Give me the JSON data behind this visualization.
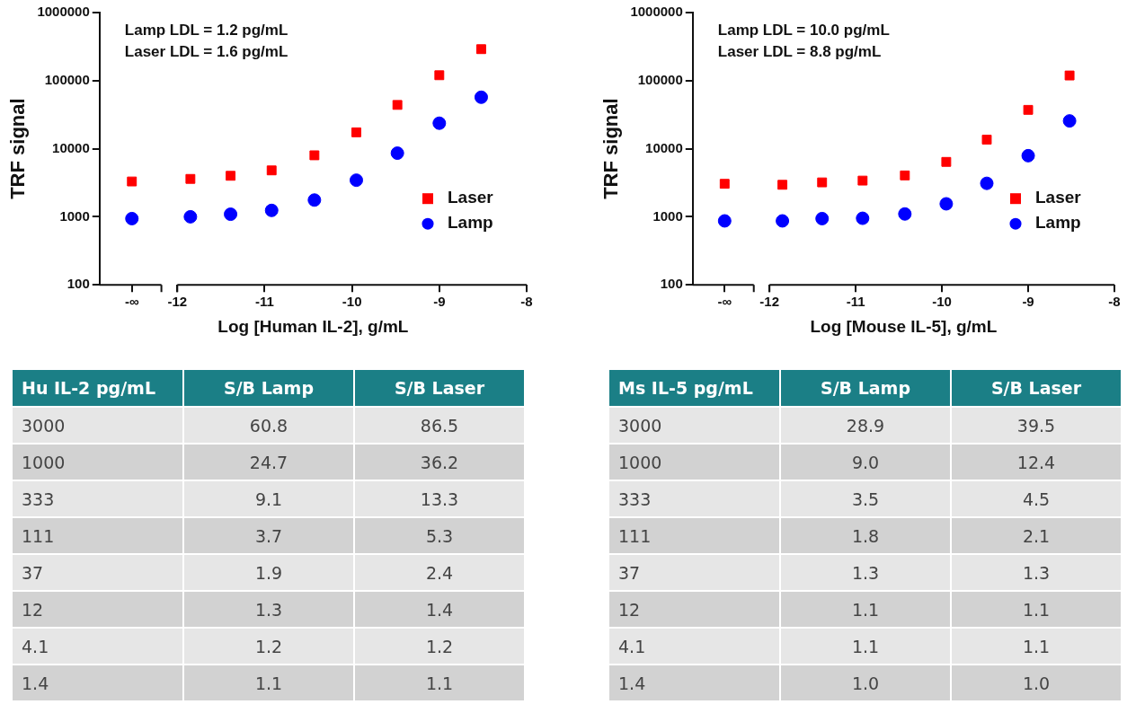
{
  "chart_data": [
    {
      "type": "scatter",
      "xlabel": "Log [Human IL-2], g/mL",
      "ylabel": "TRF signal",
      "log": "y",
      "grid": false,
      "legend": "bottom right",
      "annotations": [
        "Lamp LDL = 1.2 pg/mL",
        "Laser LDL = 1.6 pg/mL"
      ],
      "x": [
        -12.52,
        -11.85,
        -11.39,
        -10.92,
        -10.43,
        -9.95,
        -9.48,
        -9,
        -8.52
      ],
      "xlim": [
        -12.89,
        -8
      ],
      "xticks": [
        {
          "value": -12.52,
          "label": "-∞"
        },
        -12,
        -11,
        -10,
        -9,
        -8
      ],
      "ylim": [
        100,
        1000000
      ],
      "yticks": [
        100,
        1000,
        10000,
        100000,
        1000000
      ],
      "series": [
        {
          "name": "Laser",
          "color": "#ff0000",
          "marker": "square",
          "values": [
            3300,
            3600,
            4000,
            4800,
            8000,
            17400,
            44000,
            120000,
            290000
          ]
        },
        {
          "name": "Lamp",
          "color": "#0000ff",
          "marker": "circle",
          "values": [
            940,
            1000,
            1090,
            1240,
            1760,
            3450,
            8600,
            23700,
            57000
          ]
        }
      ]
    },
    {
      "type": "scatter",
      "xlabel": "Log [Mouse IL-5], g/mL",
      "ylabel": "TRF signal",
      "log": "y",
      "grid": false,
      "legend": "bottom right",
      "annotations": [
        "Lamp LDL = 10.0 pg/mL",
        "Laser LDL = 8.8 pg/mL"
      ],
      "x": [
        -12.52,
        -11.85,
        -11.39,
        -10.92,
        -10.43,
        -9.95,
        -9.48,
        -9,
        -8.52
      ],
      "xlim": [
        -12.89,
        -8
      ],
      "xticks": [
        {
          "value": -12.52,
          "label": "-∞"
        },
        -12,
        -11,
        -10,
        -9,
        -8
      ],
      "ylim": [
        100,
        1000000
      ],
      "yticks": [
        100,
        1000,
        10000,
        100000,
        1000000
      ],
      "series": [
        {
          "name": "Laser",
          "color": "#ff0000",
          "marker": "square",
          "values": [
            3050,
            2950,
            3200,
            3400,
            4050,
            6400,
            13600,
            37200,
            119000
          ]
        },
        {
          "name": "Lamp",
          "color": "#0000ff",
          "marker": "circle",
          "values": [
            870,
            870,
            940,
            950,
            1100,
            1550,
            3100,
            7900,
            25600
          ]
        }
      ]
    },
    {
      "type": "heatmap",
      "data_labels": true,
      "ylabel": "Hu IL-2 pg/mL",
      "categories": [
        "S/B Lamp",
        "S/B Laser"
      ],
      "y_categories": [
        "3000",
        "1000",
        "333",
        "111",
        "37",
        "12",
        "4.1",
        "1.4"
      ],
      "cells": [
        [
          60.8,
          86.5
        ],
        [
          24.7,
          36.2
        ],
        [
          9.1,
          13.3
        ],
        [
          3.7,
          5.3
        ],
        [
          1.9,
          2.4
        ],
        [
          1.3,
          1.4
        ],
        [
          1.2,
          1.2
        ],
        [
          1.1,
          1.1
        ]
      ]
    },
    {
      "type": "heatmap",
      "data_labels": true,
      "ylabel": "Ms IL-5 pg/mL",
      "categories": [
        "S/B Lamp",
        "S/B Laser"
      ],
      "y_categories": [
        "3000",
        "1000",
        "333",
        "111",
        "37",
        "12",
        "4.1",
        "1.4"
      ],
      "cells": [
        [
          28.9,
          39.5
        ],
        [
          9.0,
          12.4
        ],
        [
          3.5,
          4.5
        ],
        [
          1.8,
          2.1
        ],
        [
          1.3,
          1.3
        ],
        [
          1.1,
          1.1
        ],
        [
          1.1,
          1.1
        ],
        [
          1.0,
          1.0
        ]
      ],
      "cell_labels": [
        [
          "28.9",
          "39.5"
        ],
        [
          "9.0",
          "12.4"
        ],
        [
          "3.5",
          "4.5"
        ],
        [
          "1.8",
          "2.1"
        ],
        [
          "1.3",
          "1.3"
        ],
        [
          "1.1",
          "1.1"
        ],
        [
          "1.1",
          "1.1"
        ],
        [
          "1.0",
          "1.0"
        ]
      ]
    }
  ]
}
